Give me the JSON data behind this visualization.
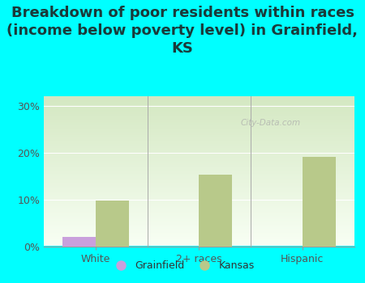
{
  "title": "Breakdown of poor residents within races\n(income below poverty level) in Grainfield,\nKS",
  "categories": [
    "White",
    "2+ races",
    "Hispanic"
  ],
  "grainfield_values": [
    2.0,
    0,
    0
  ],
  "kansas_values": [
    9.8,
    15.2,
    19.0
  ],
  "grainfield_color": "#c9a0dc",
  "kansas_color": "#b8c98a",
  "background_color": "#00ffff",
  "plot_bg_top": "#d4e8c2",
  "plot_bg_bottom": "#f8fff4",
  "ylim": [
    0,
    32
  ],
  "yticks": [
    0,
    10,
    20,
    30
  ],
  "ytick_labels": [
    "0%",
    "10%",
    "20%",
    "30%"
  ],
  "bar_width": 0.32,
  "title_fontsize": 13,
  "tick_fontsize": 9,
  "legend_fontsize": 9,
  "watermark": "City-Data.com",
  "title_color": "#1a3a3a",
  "tick_color": "#555555"
}
